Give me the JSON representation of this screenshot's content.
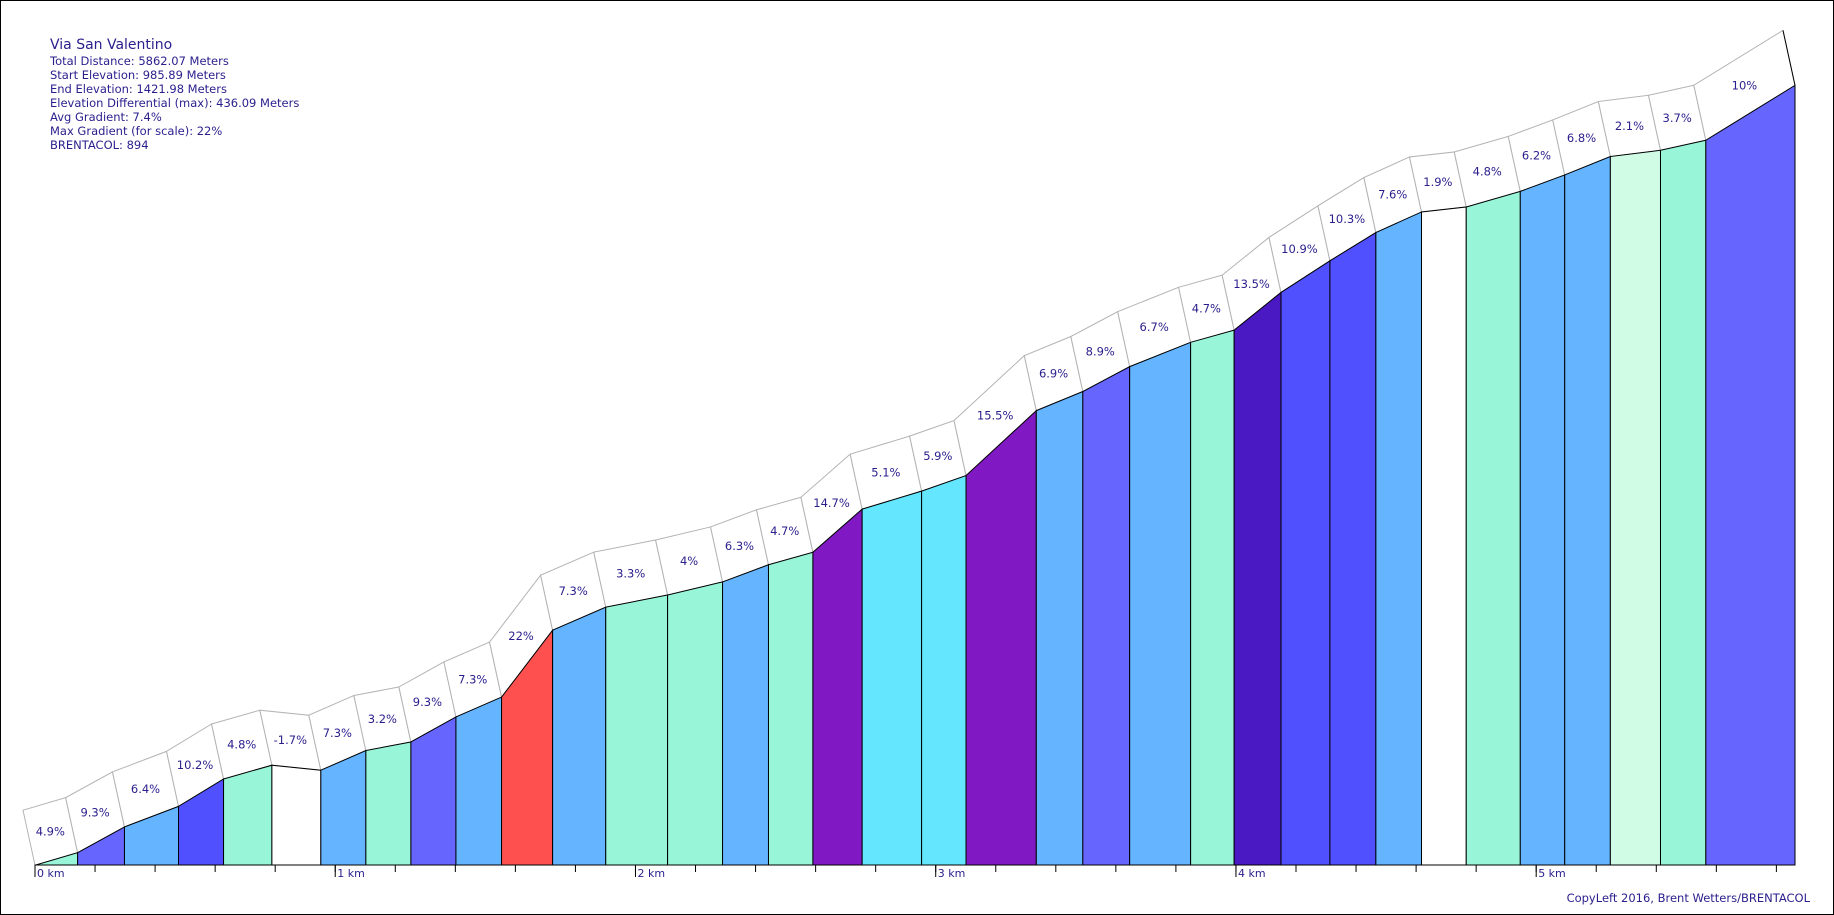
{
  "info": {
    "title": "Via San Valentino",
    "total_distance": "Total Distance: 5862.07 Meters",
    "start_elevation": "Start Elevation: 985.89 Meters",
    "end_elevation": "End Elevation: 1421.98 Meters",
    "elevation_differential": "Elevation Differential (max): 436.09 Meters",
    "avg_gradient": "Avg Gradient: 7.4%",
    "max_gradient": "Max Gradient (for scale): 22%",
    "brentacol": "BRENTACOL: 894"
  },
  "copyleft": "CopyLeft 2016, Brent Wetters/BRENTACOL",
  "chart_data": {
    "type": "area",
    "title": "Via San Valentino",
    "xlabel": "",
    "ylabel": "",
    "x_unit": "km",
    "x_ticks": [
      {
        "value": 0,
        "label": "0 km"
      },
      {
        "value": 1,
        "label": "1 km"
      },
      {
        "value": 2,
        "label": "2 km"
      },
      {
        "value": 3,
        "label": "3 km"
      },
      {
        "value": 4,
        "label": "4 km"
      },
      {
        "value": 5,
        "label": "5 km"
      }
    ],
    "xlim": [
      0,
      5.862
    ],
    "ylim": [
      986,
      1425
    ],
    "segments": [
      {
        "x0": 0.0,
        "x1": 0.142,
        "gradient": "4.9%",
        "color": "#98f5d8",
        "elev_start": 985.9,
        "elev_end": 992.9
      },
      {
        "x0": 0.142,
        "x1": 0.298,
        "gradient": "9.3%",
        "color": "#6666ff",
        "elev_start": 992.9,
        "elev_end": 1007.3
      },
      {
        "x0": 0.298,
        "x1": 0.478,
        "gradient": "6.4%",
        "color": "#64b4ff",
        "elev_start": 1007.3,
        "elev_end": 1018.8
      },
      {
        "x0": 0.478,
        "x1": 0.628,
        "gradient": "10.2%",
        "color": "#5050ff",
        "elev_start": 1018.8,
        "elev_end": 1034.1
      },
      {
        "x0": 0.628,
        "x1": 0.789,
        "gradient": "4.8%",
        "color": "#98f5d8",
        "elev_start": 1034.1,
        "elev_end": 1041.8
      },
      {
        "x0": 0.789,
        "x1": 0.952,
        "gradient": "-1.7%",
        "color": "#ffffff",
        "elev_start": 1041.8,
        "elev_end": 1039.0
      },
      {
        "x0": 0.952,
        "x1": 1.102,
        "gradient": "7.3%",
        "color": "#64b4ff",
        "elev_start": 1039.0,
        "elev_end": 1050.0
      },
      {
        "x0": 1.102,
        "x1": 1.252,
        "gradient": "3.2%",
        "color": "#98f5d8",
        "elev_start": 1050.0,
        "elev_end": 1054.8
      },
      {
        "x0": 1.252,
        "x1": 1.402,
        "gradient": "9.3%",
        "color": "#6666ff",
        "elev_start": 1054.8,
        "elev_end": 1068.8
      },
      {
        "x0": 1.402,
        "x1": 1.554,
        "gradient": "7.3%",
        "color": "#64b4ff",
        "elev_start": 1068.8,
        "elev_end": 1079.9
      },
      {
        "x0": 1.554,
        "x1": 1.724,
        "gradient": "22%",
        "color": "#ff5050",
        "elev_start": 1079.9,
        "elev_end": 1117.3
      },
      {
        "x0": 1.724,
        "x1": 1.901,
        "gradient": "7.3%",
        "color": "#64b4ff",
        "elev_start": 1117.3,
        "elev_end": 1130.2
      },
      {
        "x0": 1.901,
        "x1": 2.107,
        "gradient": "3.3%",
        "color": "#98f5d8",
        "elev_start": 1130.2,
        "elev_end": 1137.0
      },
      {
        "x0": 2.107,
        "x1": 2.29,
        "gradient": "4%",
        "color": "#98f5d8",
        "elev_start": 1137.0,
        "elev_end": 1144.3
      },
      {
        "x0": 2.29,
        "x1": 2.443,
        "gradient": "6.3%",
        "color": "#64b4ff",
        "elev_start": 1144.3,
        "elev_end": 1153.9
      },
      {
        "x0": 2.443,
        "x1": 2.591,
        "gradient": "4.7%",
        "color": "#98f5d8",
        "elev_start": 1153.9,
        "elev_end": 1160.9
      },
      {
        "x0": 2.591,
        "x1": 2.755,
        "gradient": "14.7%",
        "color": "#8019c4",
        "elev_start": 1160.9,
        "elev_end": 1185.0
      },
      {
        "x0": 2.755,
        "x1": 2.953,
        "gradient": "5.1%",
        "color": "#64e6ff",
        "elev_start": 1185.0,
        "elev_end": 1195.1
      },
      {
        "x0": 2.953,
        "x1": 3.101,
        "gradient": "5.9%",
        "color": "#64e6ff",
        "elev_start": 1195.1,
        "elev_end": 1203.8
      },
      {
        "x0": 3.101,
        "x1": 3.335,
        "gradient": "15.5%",
        "color": "#8019c4",
        "elev_start": 1203.8,
        "elev_end": 1240.1
      },
      {
        "x0": 3.335,
        "x1": 3.49,
        "gradient": "6.9%",
        "color": "#64b4ff",
        "elev_start": 1240.1,
        "elev_end": 1250.8
      },
      {
        "x0": 3.49,
        "x1": 3.646,
        "gradient": "8.9%",
        "color": "#6666ff",
        "elev_start": 1250.8,
        "elev_end": 1264.7
      },
      {
        "x0": 3.646,
        "x1": 3.849,
        "gradient": "6.7%",
        "color": "#64b4ff",
        "elev_start": 1264.7,
        "elev_end": 1278.3
      },
      {
        "x0": 3.849,
        "x1": 3.994,
        "gradient": "4.7%",
        "color": "#98f5d8",
        "elev_start": 1278.3,
        "elev_end": 1285.1
      },
      {
        "x0": 3.994,
        "x1": 4.15,
        "gradient": "13.5%",
        "color": "#4a19c4",
        "elev_start": 1285.1,
        "elev_end": 1306.2
      },
      {
        "x0": 4.15,
        "x1": 4.313,
        "gradient": "10.9%",
        "color": "#5050ff",
        "elev_start": 1306.2,
        "elev_end": 1323.9
      },
      {
        "x0": 4.313,
        "x1": 4.466,
        "gradient": "10.3%",
        "color": "#5050ff",
        "elev_start": 1323.9,
        "elev_end": 1339.7
      },
      {
        "x0": 4.466,
        "x1": 4.618,
        "gradient": "7.6%",
        "color": "#64b4ff",
        "elev_start": 1339.7,
        "elev_end": 1351.2
      },
      {
        "x0": 4.618,
        "x1": 4.767,
        "gradient": "1.9%",
        "color": "#ffffff",
        "elev_start": 1351.2,
        "elev_end": 1354.0
      },
      {
        "x0": 4.767,
        "x1": 4.947,
        "gradient": "4.8%",
        "color": "#98f5d8",
        "elev_start": 1354.0,
        "elev_end": 1362.7
      },
      {
        "x0": 4.947,
        "x1": 5.095,
        "gradient": "6.2%",
        "color": "#64b4ff",
        "elev_start": 1362.7,
        "elev_end": 1371.9
      },
      {
        "x0": 5.095,
        "x1": 5.247,
        "gradient": "6.8%",
        "color": "#64b4ff",
        "elev_start": 1371.9,
        "elev_end": 1382.2
      },
      {
        "x0": 5.247,
        "x1": 5.414,
        "gradient": "2.1%",
        "color": "#d0fce6",
        "elev_start": 1382.2,
        "elev_end": 1385.7
      },
      {
        "x0": 5.414,
        "x1": 5.565,
        "gradient": "3.7%",
        "color": "#98f5d8",
        "elev_start": 1385.7,
        "elev_end": 1391.3
      },
      {
        "x0": 5.565,
        "x1": 5.862,
        "gradient": "10%",
        "color": "#6666ff",
        "elev_start": 1391.3,
        "elev_end": 1422.0
      }
    ]
  }
}
